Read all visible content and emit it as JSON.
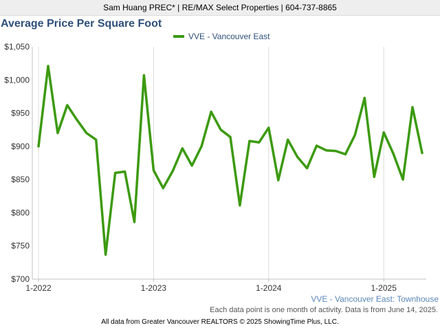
{
  "header": {
    "text": "Sam Huang PREC* | RE/MAX Select Properties | 604-737-8865"
  },
  "footer": {
    "note": "Each data point is one month of activity. Data is from June 14, 2025.",
    "credit": "All data from Greater Vancouver REALTORS © 2025 ShowingTime Plus, LLC."
  },
  "colors": {
    "series": "#3c9a0f",
    "title": "#2e4f7a",
    "watermark": "#5a86b8"
  },
  "chart_data": {
    "type": "line",
    "title": "Average Price Per Square Foot",
    "watermark": "VVE - Vancouver East: Townhouse",
    "legend_position": "top-center",
    "grid": "vertical-only",
    "ylim": [
      700,
      1050
    ],
    "yticks": [
      "$1,050",
      "$1,000",
      "$950",
      "$900",
      "$850",
      "$800",
      "$750",
      "$700"
    ],
    "ytick_values": [
      1050,
      1000,
      950,
      900,
      850,
      800,
      750,
      700
    ],
    "xticks": [
      "1-2022",
      "1-2023",
      "1-2024",
      "1-2025"
    ],
    "xtick_index": [
      0,
      12,
      24,
      36
    ],
    "series": [
      {
        "name": "VVE - Vancouver East",
        "x": [
          "2022-01",
          "2022-02",
          "2022-03",
          "2022-04",
          "2022-05",
          "2022-06",
          "2022-07",
          "2022-08",
          "2022-09",
          "2022-10",
          "2022-11",
          "2022-12",
          "2023-01",
          "2023-02",
          "2023-03",
          "2023-04",
          "2023-05",
          "2023-06",
          "2023-07",
          "2023-08",
          "2023-09",
          "2023-10",
          "2023-11",
          "2023-12",
          "2024-01",
          "2024-02",
          "2024-03",
          "2024-04",
          "2024-05",
          "2024-06",
          "2024-07",
          "2024-08",
          "2024-09",
          "2024-10",
          "2024-11",
          "2024-12",
          "2025-01",
          "2025-02",
          "2025-03",
          "2025-04",
          "2025-05"
        ],
        "values": [
          900,
          1021,
          920,
          962,
          940,
          920,
          910,
          737,
          860,
          862,
          786,
          1007,
          864,
          837,
          863,
          897,
          871,
          900,
          952,
          925,
          914,
          811,
          908,
          906,
          928,
          849,
          910,
          884,
          867,
          901,
          894,
          893,
          888,
          917,
          973,
          854,
          921,
          889,
          850,
          959,
          890
        ]
      }
    ]
  }
}
